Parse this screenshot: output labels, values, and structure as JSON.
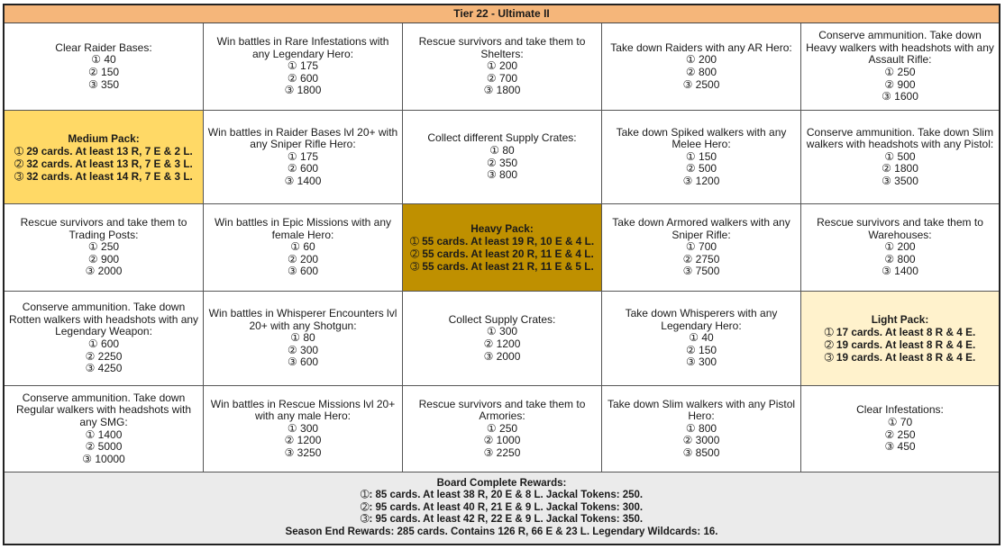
{
  "header": {
    "title": "Tier 22 - Ultimate II"
  },
  "grid": {
    "rows": [
      [
        {
          "type": "task",
          "text": "Clear Raider Bases:",
          "values": [
            "① 40",
            "② 150",
            "③ 350"
          ]
        },
        {
          "type": "task",
          "text": "Win battles in Rare Infestations with any Legendary Hero:",
          "values": [
            "① 175",
            "② 600",
            "③ 1800"
          ]
        },
        {
          "type": "task",
          "text": "Rescue survivors and take them to Shelters:",
          "values": [
            "① 200",
            "② 700",
            "③ 1800"
          ]
        },
        {
          "type": "task",
          "text": "Take down Raiders with any AR Hero:",
          "values": [
            "① 200",
            "② 800",
            "③ 2500"
          ]
        },
        {
          "type": "task",
          "text": "Conserve ammunition. Take down Heavy walkers with headshots with any Assault Rifle:",
          "values": [
            "① 250",
            "② 900",
            "③ 1600"
          ]
        }
      ],
      [
        {
          "type": "pack",
          "style": "medium",
          "title": "Medium Pack:",
          "lines": [
            "➀ 29 cards. At least 13 R, 7 E & 2 L.",
            "➁ 32 cards. At least 13 R, 7 E & 3 L.",
            "➂ 32 cards. At least 14 R, 7 E & 3 L."
          ]
        },
        {
          "type": "task",
          "text": "Win battles in Raider Bases lvl 20+ with any Sniper Rifle Hero:",
          "values": [
            "① 175",
            "② 600",
            "③ 1400"
          ]
        },
        {
          "type": "task",
          "text": "Collect different Supply Crates:",
          "values": [
            "① 80",
            "② 350",
            "③ 800"
          ]
        },
        {
          "type": "task",
          "text": "Take down Spiked walkers with any Melee Hero:",
          "values": [
            "① 150",
            "② 500",
            "③ 1200"
          ]
        },
        {
          "type": "task",
          "text": "Conserve ammunition. Take down Slim walkers with headshots with any Pistol:",
          "values": [
            "① 500",
            "② 1800",
            "③ 3500"
          ]
        }
      ],
      [
        {
          "type": "task",
          "text": "Rescue survivors and take them to Trading Posts:",
          "values": [
            "① 250",
            "② 900",
            "③ 2000"
          ]
        },
        {
          "type": "task",
          "text": "Win battles in Epic Missions with any female Hero:",
          "values": [
            "① 60",
            "② 200",
            "③ 600"
          ]
        },
        {
          "type": "pack",
          "style": "heavy",
          "title": "Heavy Pack:",
          "lines": [
            "➀ 55 cards. At least 19 R, 10 E & 4 L.",
            "➁ 55 cards. At least 20 R, 11 E & 4 L.",
            "➂ 55 cards. At least 21 R, 11 E & 5 L."
          ]
        },
        {
          "type": "task",
          "text": "Take down Armored walkers with any Sniper Rifle:",
          "values": [
            "① 700",
            "② 2750",
            "③ 7500"
          ]
        },
        {
          "type": "task",
          "text": "Rescue survivors and take them to Warehouses:",
          "values": [
            "① 200",
            "② 800",
            "③ 1400"
          ]
        }
      ],
      [
        {
          "type": "task",
          "text": "Conserve ammunition. Take down Rotten walkers with headshots with any Legendary Weapon:",
          "values": [
            "① 600",
            "② 2250",
            "③ 4250"
          ]
        },
        {
          "type": "task",
          "text": "Win battles in Whisperer Encounters lvl 20+ with any Shotgun:",
          "values": [
            "① 80",
            "② 300",
            "③ 600"
          ]
        },
        {
          "type": "task",
          "text": "Collect Supply Crates:",
          "values": [
            "① 300",
            "② 1200",
            "③ 2000"
          ]
        },
        {
          "type": "task",
          "text": "Take down Whisperers with any Legendary Hero:",
          "values": [
            "① 40",
            "② 150",
            "③ 300"
          ]
        },
        {
          "type": "pack",
          "style": "light",
          "title": "Light Pack:",
          "lines": [
            "➀ 17 cards. At least 8 R & 4 E.",
            "➁ 19 cards. At least 8 R & 4 E.",
            "➂ 19 cards. At least 8 R & 4 E."
          ]
        }
      ],
      [
        {
          "type": "task",
          "text": "Conserve ammunition. Take down Regular walkers with headshots with any SMG:",
          "values": [
            "① 1400",
            "② 5000",
            "③ 10000"
          ]
        },
        {
          "type": "task",
          "text": "Win battles in Rescue Missions lvl 20+ with any male Hero:",
          "values": [
            "① 300",
            "② 1200",
            "③ 3250"
          ]
        },
        {
          "type": "task",
          "text": "Rescue survivors and take them to Armories:",
          "values": [
            "① 250",
            "② 1000",
            "③ 2250"
          ]
        },
        {
          "type": "task",
          "text": "Take down Slim walkers with any Pistol Hero:",
          "values": [
            "① 800",
            "② 3000",
            "③ 8500"
          ]
        },
        {
          "type": "task",
          "text": "Clear Infestations:",
          "values": [
            "① 70",
            "② 250",
            "③ 450"
          ]
        }
      ]
    ]
  },
  "footer": {
    "title": "Board Complete Rewards:",
    "lines": [
      "➀: 85 cards. At least 38 R, 20 E & 8 L. Jackal Tokens: 250.",
      "➁: 95 cards. At least 40 R, 21 E & 9 L. Jackal Tokens: 300.",
      "➂: 95 cards. At least 42 R, 22 E & 9 L. Jackal Tokens: 350."
    ],
    "season": "Season End Rewards: 285 cards. Contains 126 R, 66 E & 23 L. Legendary Wildcards: 16."
  }
}
